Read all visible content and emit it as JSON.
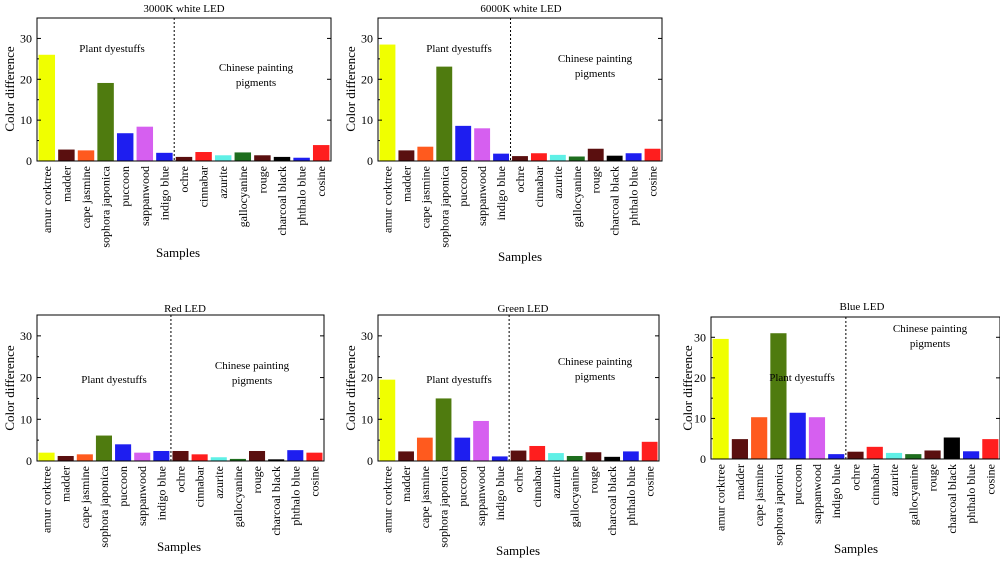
{
  "figure": {
    "colors": {
      "amur corktree": "#f0ff00",
      "madder": "#5a0f0f",
      "cape jasmine": "#ff5a1e",
      "sophora japonica": "#4f7b0f",
      "puccoon": "#1e1ef0",
      "sappanwood": "#d65ff0",
      "indigo blue": "#1e1ef0",
      "ochre": "#5a0f0f",
      "cinnabar": "#ff1e1e",
      "azurite": "#5ff0e6",
      "gallocyanine": "#1e6e1e",
      "rouge": "#5a0f0f",
      "charcoal black": "#000000",
      "phthalo blue": "#1e1ef0",
      "cosine": "#ff1e1e"
    }
  },
  "chart_data": [
    {
      "type": "bar",
      "title": "3000K white LED",
      "xlabel": "Samples",
      "ylabel": "Color difference",
      "ylim": [
        0,
        35
      ],
      "yticks": [
        0,
        10,
        20,
        30
      ],
      "categories": [
        "amur corktree",
        "madder",
        "cape jasmine",
        "sophora japonica",
        "puccoon",
        "sappanwood",
        "indigo blue",
        "ochre",
        "cinnabar",
        "azurite",
        "gallocyanine",
        "rouge",
        "charcoal black",
        "phthalo blue",
        "cosine"
      ],
      "values": [
        26.0,
        2.8,
        2.6,
        19.1,
        6.8,
        8.4,
        2.0,
        1.0,
        2.2,
        1.4,
        2.1,
        1.4,
        1.0,
        0.8,
        3.9
      ],
      "annotations": [
        "Plant dyestuffs",
        "Chinese painting pigments"
      ]
    },
    {
      "type": "bar",
      "title": "6000K white LED",
      "xlabel": "Samples",
      "ylabel": "Color difference",
      "ylim": [
        0,
        35
      ],
      "yticks": [
        0,
        10,
        20,
        30
      ],
      "categories": [
        "amur corktree",
        "madder",
        "cape jasmine",
        "sophora japonica",
        "puccoon",
        "sappanwood",
        "indigo blue",
        "ochre",
        "cinnabar",
        "azurite",
        "gallocyanine",
        "rouge",
        "charcoal black",
        "phthalo blue",
        "cosine"
      ],
      "values": [
        28.5,
        2.6,
        3.5,
        23.1,
        8.6,
        8.0,
        1.8,
        1.2,
        1.9,
        1.5,
        1.1,
        3.0,
        1.3,
        1.9,
        3.0
      ],
      "annotations": [
        "Plant dyestuffs",
        "Chinese painting pigments"
      ]
    },
    {
      "type": "bar",
      "title": "Red LED",
      "xlabel": "Samples",
      "ylabel": "Color difference",
      "ylim": [
        0,
        35
      ],
      "yticks": [
        0,
        10,
        20,
        30
      ],
      "categories": [
        "amur corktree",
        "madder",
        "cape jasmine",
        "sophora japonica",
        "puccoon",
        "sappanwood",
        "indigo blue",
        "ochre",
        "cinnabar",
        "azurite",
        "gallocyanine",
        "rouge",
        "charcoal black",
        "phthalo blue",
        "cosine"
      ],
      "values": [
        2.0,
        1.2,
        1.6,
        6.1,
        4.0,
        2.0,
        2.4,
        2.4,
        1.6,
        0.9,
        0.5,
        2.4,
        0.4,
        2.6,
        2.0
      ],
      "annotations": [
        "Plant dyestuffs",
        "Chinese painting pigments"
      ]
    },
    {
      "type": "bar",
      "title": "Green LED",
      "xlabel": "Samples",
      "ylabel": "Color difference",
      "ylim": [
        0,
        35
      ],
      "yticks": [
        0,
        10,
        20,
        30
      ],
      "categories": [
        "amur corktree",
        "madder",
        "cape jasmine",
        "sophora japonica",
        "puccoon",
        "sappanwood",
        "indigo blue",
        "ochre",
        "cinnabar",
        "azurite",
        "gallocyanine",
        "rouge",
        "charcoal black",
        "phthalo blue",
        "cosine"
      ],
      "values": [
        19.5,
        2.3,
        5.6,
        15.0,
        5.6,
        9.6,
        1.1,
        2.5,
        3.6,
        1.9,
        1.2,
        2.1,
        1.0,
        2.3,
        4.6
      ],
      "annotations": [
        "Plant dyestuffs",
        "Chinese painting pigments"
      ]
    },
    {
      "type": "bar",
      "title": "Blue LED",
      "xlabel": "Samples",
      "ylabel": "Color difference",
      "ylim": [
        0,
        35
      ],
      "yticks": [
        0,
        10,
        20,
        30
      ],
      "categories": [
        "amur corktree",
        "madder",
        "cape jasmine",
        "sophora japonica",
        "puccoon",
        "sappanwood",
        "indigo blue",
        "ochre",
        "cinnabar",
        "azurite",
        "gallocyanine",
        "rouge",
        "charcoal black",
        "phthalo blue",
        "cosine"
      ],
      "values": [
        29.6,
        4.9,
        10.3,
        31.0,
        11.4,
        10.3,
        1.2,
        1.8,
        3.0,
        1.5,
        1.2,
        2.1,
        5.3,
        1.9,
        4.9
      ],
      "annotations": [
        "Plant dyestuffs",
        "Chinese painting pigments"
      ]
    }
  ]
}
